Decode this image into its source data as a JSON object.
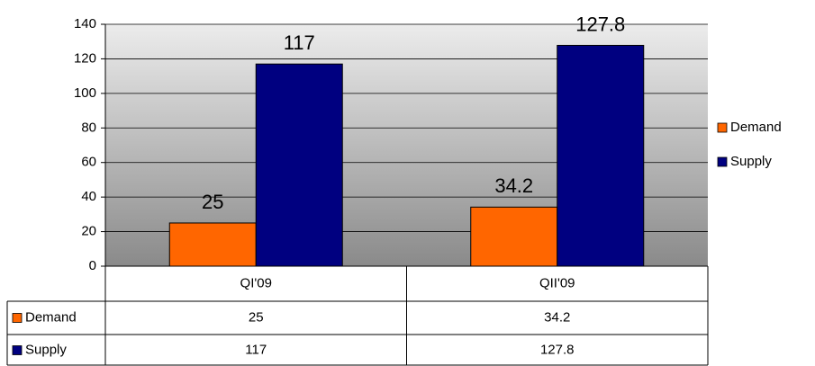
{
  "chart_data": {
    "type": "bar",
    "categories": [
      "QI'09",
      "QII'09"
    ],
    "series": [
      {
        "name": "Demand",
        "color": "#ff6600",
        "values": [
          25,
          34.2
        ]
      },
      {
        "name": "Supply",
        "color": "#000080",
        "values": [
          117,
          127.8
        ]
      }
    ],
    "ylim": [
      0,
      140
    ],
    "yticks": [
      0,
      20,
      40,
      60,
      80,
      100,
      120,
      140
    ],
    "grid": true,
    "legend": "right",
    "data_table": true
  }
}
